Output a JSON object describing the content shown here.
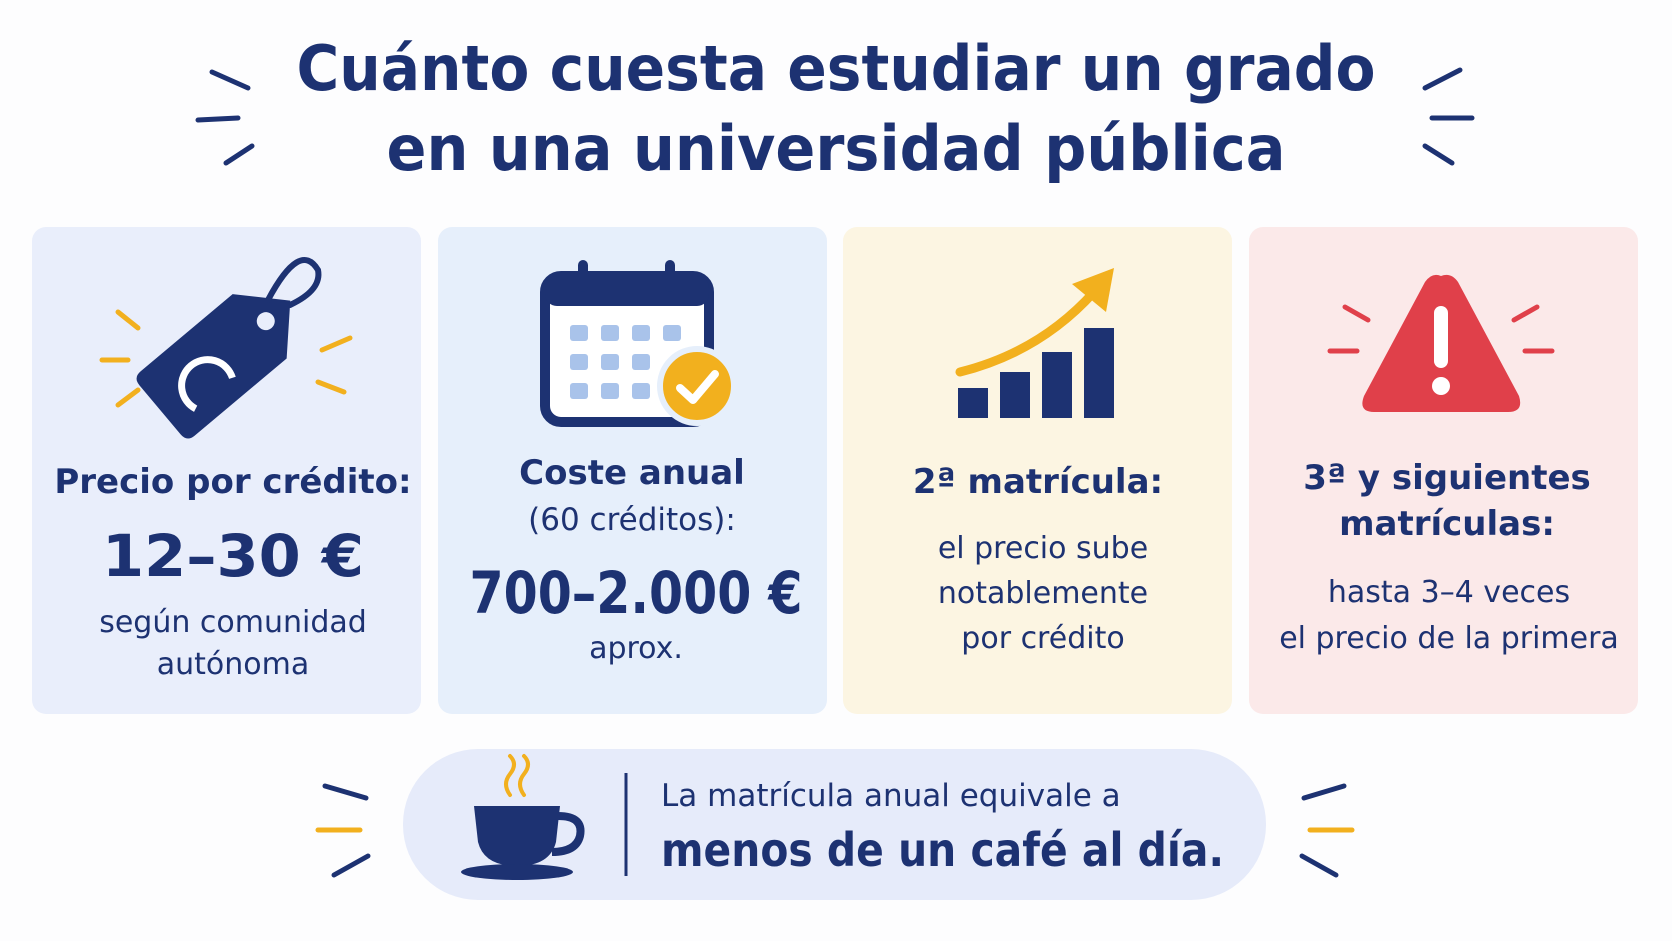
{
  "header": {
    "title": [
      "Cuánto cuesta estudiar un grado",
      "en una universidad pública"
    ]
  },
  "cards": [
    {
      "heading": [
        "Precio por crédito:"
      ],
      "value": "12–30 €",
      "note": [
        "según comunidad",
        "autónoma"
      ]
    },
    {
      "heading": [
        "Coste anual",
        "(60 créditos):"
      ],
      "value": "700–2.000 €",
      "note": [
        "aprox."
      ]
    },
    {
      "heading": [
        "2ª matrícula:"
      ],
      "note": [
        "el precio sube",
        "notablemente",
        "por crédito"
      ]
    },
    {
      "heading": [
        "3ª y siguientes",
        "matrículas:"
      ],
      "note": [
        "hasta 3–4 veces",
        "el precio de la primera"
      ]
    }
  ],
  "footer": {
    "lines": [
      "La matrícula anual equivale a",
      "menos de un café al día."
    ]
  }
}
